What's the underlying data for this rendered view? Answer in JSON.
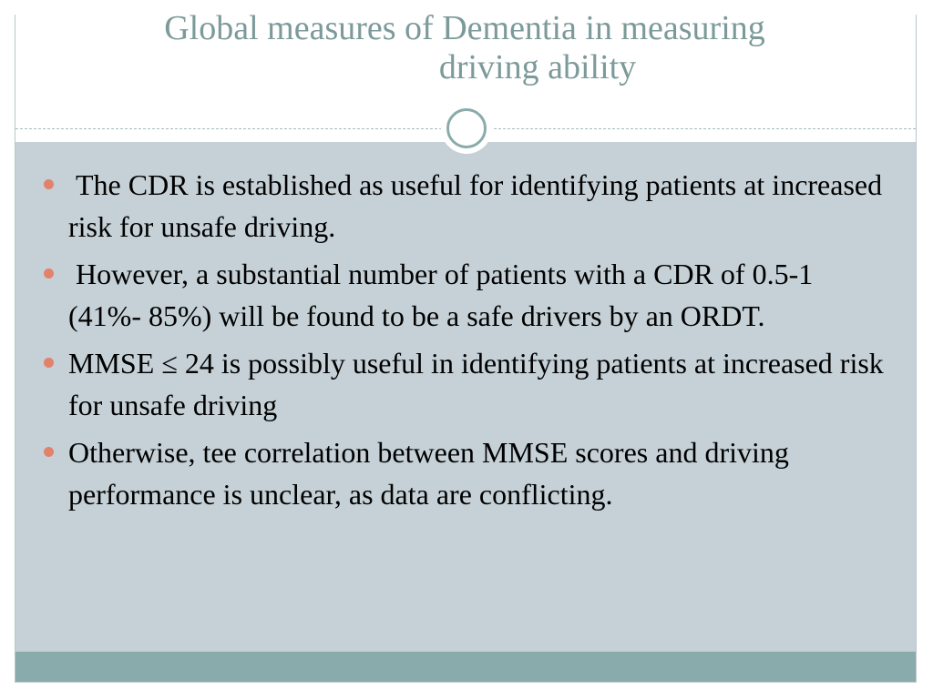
{
  "slide": {
    "title_line1": "Global measures of Dementia in measuring",
    "title_line2": "driving ability",
    "bullets": [
      " The CDR is established as useful for identifying patients at increased risk for unsafe driving.",
      " However, a substantial number of patients with a CDR of 0.5-1  (41%- 85%) will be found to be a safe drivers by an ORDT.",
      "MMSE ≤ 24 is possibly useful in identifying patients at increased risk for unsafe driving",
      "Otherwise, tee correlation between MMSE scores and driving performance is unclear, as data are conflicting."
    ]
  },
  "colors": {
    "title": "#7d9a9a",
    "content_background": "#c5d1d7",
    "footer_band": "#8aabab",
    "bullet": "#e2826a"
  },
  "icons": {
    "bullet": "bullet-dot-icon",
    "ornament": "circle-ring-ornament"
  }
}
